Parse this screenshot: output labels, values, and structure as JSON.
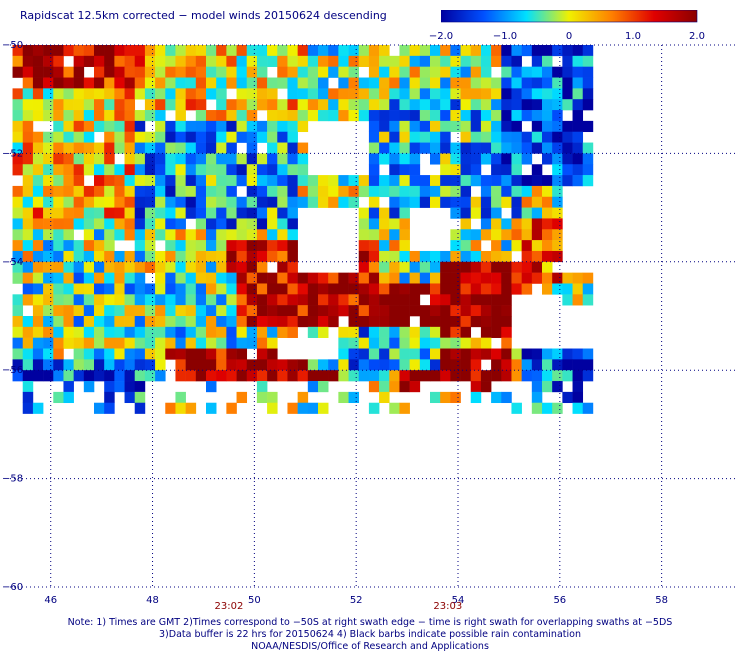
{
  "title": "Rapidscat 12.5km corrected − model winds 20150624 descending",
  "colorbar": {
    "min": -2.0,
    "max": 2.0,
    "labels": [
      "−2.0",
      "−1.0",
      "0",
      "1.0",
      "2.0"
    ],
    "label_values": [
      -2.0,
      -1.0,
      0,
      1.0,
      2.0
    ],
    "colors": [
      "#0000a0",
      "#0050ff",
      "#00e0ff",
      "#f0f000",
      "#ff8000",
      "#e00000",
      "#8b0000"
    ]
  },
  "chart_data": {
    "type": "heatmap",
    "title": "Rapidscat 12.5km corrected − model winds 20150624 descending",
    "xlabel": "",
    "ylabel": "",
    "xlim": [
      45.2,
      59.5
    ],
    "ylim": [
      -60,
      -50
    ],
    "x_ticks": [
      46,
      48,
      50,
      52,
      54,
      56,
      58
    ],
    "x_tick_labels": [
      "46",
      "48",
      "50",
      "52",
      "54",
      "56",
      "58"
    ],
    "y_ticks": [
      -50,
      -52,
      -54,
      -56,
      -58,
      -60
    ],
    "y_tick_labels": [
      "−50",
      "−52",
      "−54",
      "−56",
      "−58",
      "−60"
    ],
    "time_labels": [
      {
        "x": 49.5,
        "text": "23:02"
      },
      {
        "x": 53.8,
        "text": "23:03"
      }
    ],
    "value_range": [
      -2.0,
      2.0
    ],
    "grid": true,
    "swath": {
      "lon_start": 45.25,
      "lon_step": 0.2,
      "lat_start": -50.0,
      "lat_step": 0.2,
      "columns": 58,
      "rows": 28,
      "missing_regions": [
        {
          "lon": [
            50.8,
            51.9
          ],
          "lat": [
            -53.0,
            -54.0
          ]
        },
        {
          "lon": [
            52.9,
            53.7
          ],
          "lat": [
            -52.9,
            -53.7
          ]
        },
        {
          "lon": [
            50.3,
            51.5
          ],
          "lat": [
            -55.3,
            -55.7
          ]
        },
        {
          "lon": [
            54.9,
            56.0
          ],
          "lat": [
            -54.6,
            -55.5
          ]
        },
        {
          "lon": [
            51.0,
            52.2
          ],
          "lat": [
            -51.4,
            -52.2
          ]
        },
        {
          "lon": [
            55.9,
            56.6
          ],
          "lat": [
            -52.5,
            -54.0
          ]
        }
      ],
      "regions": [
        {
          "lon": [
            45.2,
            47.8
          ],
          "lat": [
            -50.0,
            -50.8
          ],
          "mean": 1.5
        },
        {
          "lon": [
            45.2,
            48.2
          ],
          "lat": [
            -50.8,
            -53.0
          ],
          "mean": 0.3
        },
        {
          "lon": [
            47.6,
            50.8
          ],
          "lat": [
            -51.2,
            -53.2
          ],
          "mean": -0.9
        },
        {
          "lon": [
            48.0,
            51.0
          ],
          "lat": [
            -50.0,
            -51.2
          ],
          "mean": 0.2
        },
        {
          "lon": [
            52.0,
            55.2
          ],
          "lat": [
            -51.0,
            -53.0
          ],
          "mean": -0.7
        },
        {
          "lon": [
            54.8,
            56.6
          ],
          "lat": [
            -50.0,
            -52.5
          ],
          "mean": -1.4
        },
        {
          "lon": [
            49.4,
            52.4
          ],
          "lat": [
            -53.6,
            -55.0
          ],
          "mean": 1.6
        },
        {
          "lon": [
            53.6,
            55.2
          ],
          "lat": [
            -54.0,
            -55.2
          ],
          "mean": 2.0
        },
        {
          "lon": [
            52.0,
            53.6
          ],
          "lat": [
            -54.4,
            -55.0
          ],
          "mean": 1.8
        },
        {
          "lon": [
            55.0,
            56.6
          ],
          "lat": [
            -53.2,
            -54.2
          ],
          "mean": 0.9
        },
        {
          "lon": [
            45.2,
            49.5
          ],
          "lat": [
            -54.2,
            -55.5
          ],
          "mean": -0.4
        },
        {
          "lon": [
            48.2,
            51.5
          ],
          "lat": [
            -55.5,
            -56.1
          ],
          "mean": 1.8
        },
        {
          "lon": [
            52.8,
            55.0
          ],
          "lat": [
            -55.6,
            -56.2
          ],
          "mean": 2.0
        },
        {
          "lon": [
            51.0,
            53.6
          ],
          "lat": [
            -55.2,
            -55.8
          ],
          "mean": -0.8
        },
        {
          "lon": [
            55.2,
            56.6
          ],
          "lat": [
            -55.6,
            -56.6
          ],
          "mean": -1.3
        },
        {
          "lon": [
            45.2,
            48.0
          ],
          "lat": [
            -55.8,
            -56.6
          ],
          "mean": -1.2
        }
      ]
    }
  },
  "notes": [
    "Note: 1) Times are GMT 2)Times correspond to −50S at right swath edge − time is right swath for overlapping swaths at −5DS",
    "3)Data buffer is 22 hrs for 20150624 4) Black barbs indicate possible rain contamination",
    "NOAA/NESDIS/Office of Research and Applications"
  ]
}
